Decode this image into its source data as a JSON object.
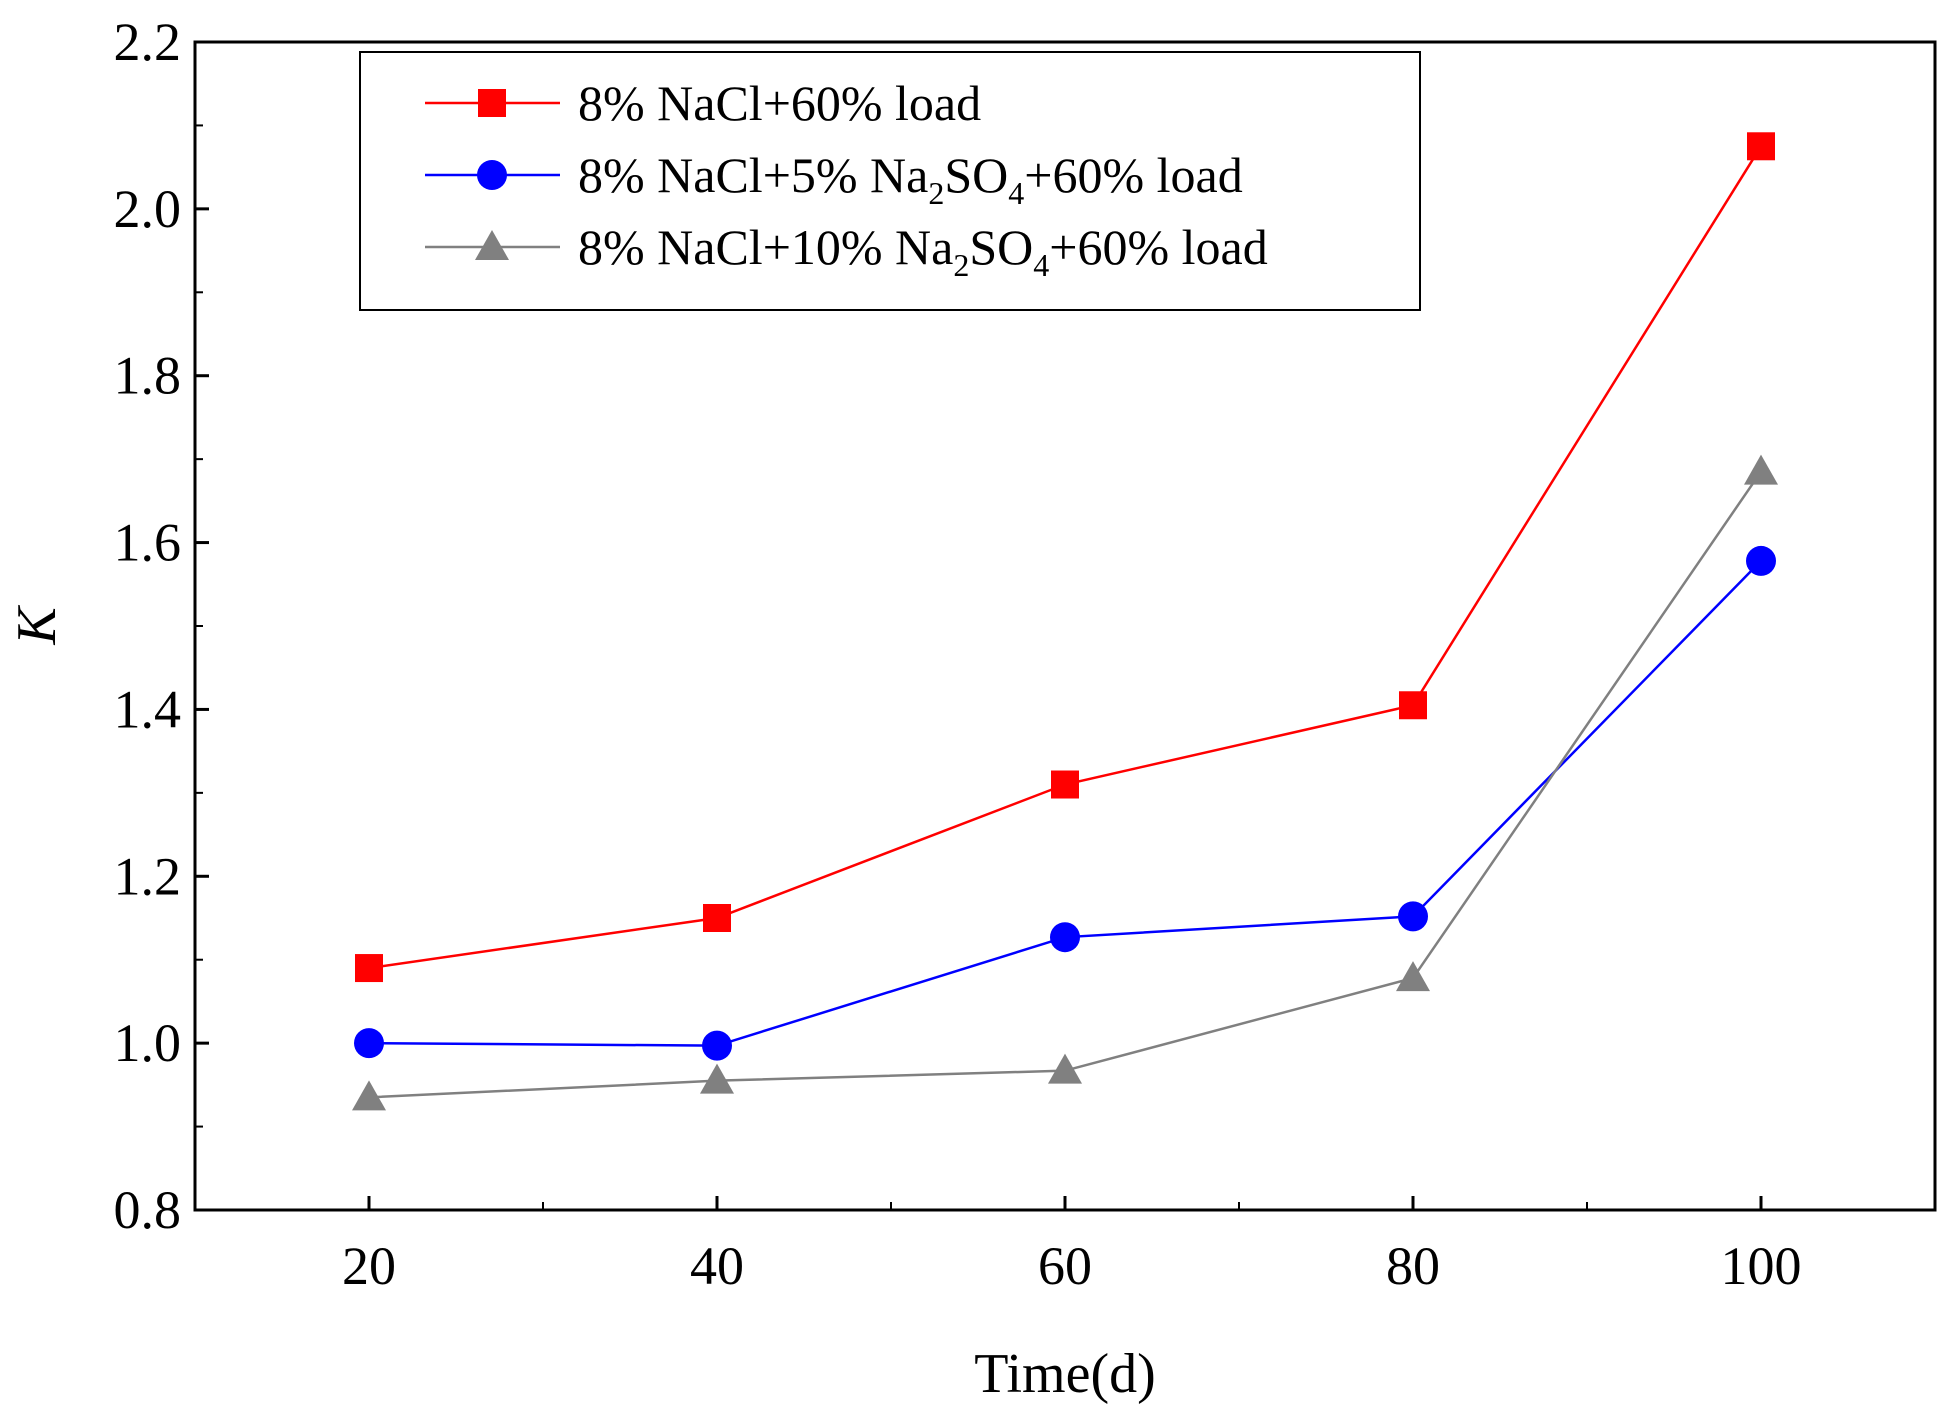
{
  "chart_data": {
    "type": "line",
    "title": "",
    "xlabel": "Time(d)",
    "ylabel": "K",
    "x": [
      20,
      40,
      60,
      80,
      100
    ],
    "xlim": [
      10,
      110
    ],
    "ylim": [
      0.8,
      2.2
    ],
    "xticks": [
      "20",
      "40",
      "60",
      "80",
      "100"
    ],
    "yticks": [
      "0.8",
      "1.0",
      "1.2",
      "1.4",
      "1.6",
      "1.8",
      "2.0",
      "2.2"
    ],
    "grid": false,
    "legend_position": "top-left",
    "series": [
      {
        "name": "8% NaCl+60% load",
        "legend_parts": [
          {
            "t": "8% NaCl+60% load"
          }
        ],
        "marker": "square",
        "color": "#ff0000",
        "values": [
          1.09,
          1.15,
          1.31,
          1.405,
          2.075
        ]
      },
      {
        "name": "8% NaCl+5% Na2SO4+60% load",
        "legend_parts": [
          {
            "t": "8% NaCl+5% Na"
          },
          {
            "t": "2",
            "sub": true
          },
          {
            "t": "SO"
          },
          {
            "t": "4",
            "sub": true
          },
          {
            "t": "+60% load"
          }
        ],
        "marker": "circle",
        "color": "#0000ff",
        "values": [
          1.0,
          0.997,
          1.127,
          1.152,
          1.578
        ]
      },
      {
        "name": "8% NaCl+10% Na2SO4+60% load",
        "legend_parts": [
          {
            "t": "8% NaCl+10% Na"
          },
          {
            "t": "2",
            "sub": true
          },
          {
            "t": "SO"
          },
          {
            "t": "4",
            "sub": true
          },
          {
            "t": "+60% load"
          }
        ],
        "marker": "triangle",
        "color": "#808080",
        "values": [
          0.935,
          0.955,
          0.967,
          1.078,
          1.685
        ]
      }
    ]
  }
}
